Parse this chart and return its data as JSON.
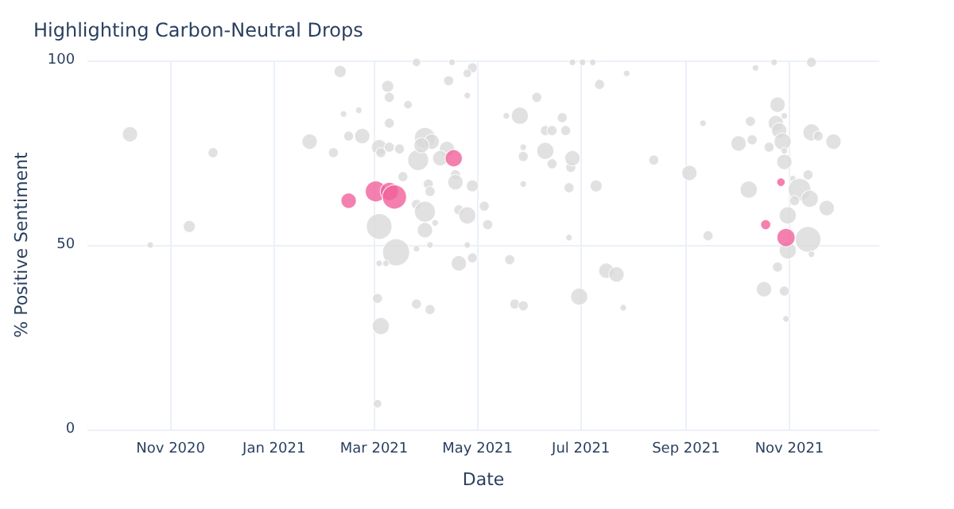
{
  "chart_data": {
    "type": "bubble",
    "title": "Highlighting Carbon-Neutral Drops",
    "xlabel": "Date",
    "ylabel": "% Positive Sentiment",
    "xlim": [
      "2020-09-13",
      "2021-12-24"
    ],
    "xticks": [
      {
        "value": "2020-11-01",
        "label": "Nov 2020"
      },
      {
        "value": "2021-01-01",
        "label": "Jan 2021"
      },
      {
        "value": "2021-03-01",
        "label": "Mar 2021"
      },
      {
        "value": "2021-05-01",
        "label": "May 2021"
      },
      {
        "value": "2021-07-01",
        "label": "Jul 2021"
      },
      {
        "value": "2021-09-01",
        "label": "Sep 2021"
      },
      {
        "value": "2021-11-01",
        "label": "Nov 2021"
      }
    ],
    "ylim": [
      0,
      100
    ],
    "yticks": [
      0,
      50,
      100
    ],
    "grid": true,
    "series": [
      {
        "color": "#d9d9d9",
        "x": [
          "2020-10-08",
          "2020-10-20",
          "2020-11-12",
          "2020-11-26",
          "2021-01-22",
          "2021-02-09",
          "2021-02-05",
          "2021-02-11",
          "2021-02-20",
          "2021-02-14",
          "2021-02-22",
          "2021-03-03",
          "2021-03-05",
          "2021-03-03",
          "2021-03-04",
          "2021-03-09",
          "2021-03-10",
          "2021-03-21",
          "2021-03-10",
          "2021-03-04",
          "2021-03-05",
          "2021-03-10",
          "2021-03-16",
          "2021-03-27",
          "2021-03-31",
          "2021-04-04",
          "2021-03-29",
          "2021-04-13",
          "2021-04-09",
          "2021-03-18",
          "2021-03-26",
          "2021-04-28",
          "2021-04-25",
          "2021-04-14",
          "2021-04-25",
          "2021-04-18",
          "2021-04-18",
          "2021-04-28",
          "2021-04-02",
          "2021-04-03",
          "2021-03-26",
          "2021-03-31",
          "2021-04-06",
          "2021-03-31",
          "2021-04-20",
          "2021-04-25",
          "2021-05-05",
          "2021-05-07",
          "2021-03-14",
          "2021-04-20",
          "2021-04-28",
          "2021-03-26",
          "2021-04-25",
          "2021-04-03",
          "2021-03-04",
          "2021-03-08",
          "2021-05-20",
          "2021-05-26",
          "2021-05-18",
          "2021-06-05",
          "2021-06-10",
          "2021-05-28",
          "2021-05-28",
          "2021-05-28",
          "2021-06-10",
          "2021-06-14",
          "2021-06-22",
          "2021-06-20",
          "2021-06-14",
          "2021-06-25",
          "2021-06-26",
          "2021-06-24",
          "2021-07-10",
          "2021-07-12",
          "2021-07-28",
          "2021-06-24",
          "2021-07-16",
          "2021-07-22",
          "2021-06-30",
          "2021-05-23",
          "2021-05-28",
          "2021-03-26",
          "2021-04-03",
          "2021-07-26",
          "2021-08-13",
          "2021-09-03",
          "2021-09-11",
          "2021-09-14",
          "2021-10-12",
          "2021-10-02",
          "2021-10-10",
          "2021-10-09",
          "2021-10-25",
          "2021-10-24",
          "2021-10-26",
          "2021-10-20",
          "2021-10-28",
          "2021-10-29",
          "2021-10-29",
          "2021-11-14",
          "2021-11-18",
          "2021-11-27",
          "2021-10-29",
          "2021-11-03",
          "2021-11-12",
          "2021-10-08",
          "2021-11-07",
          "2021-11-13",
          "2021-11-04",
          "2021-11-23",
          "2021-10-31",
          "2021-11-12",
          "2021-10-31",
          "2021-11-14",
          "2021-10-25",
          "2021-10-17",
          "2021-10-29",
          "2021-10-30",
          "2021-11-14",
          "2021-10-23",
          "2021-07-08",
          "2021-07-02",
          "2021-06-26",
          "2021-04-16"
        ],
        "values": [
          80,
          50,
          55,
          75,
          78,
          97,
          75,
          85.5,
          86.5,
          79.5,
          79.5,
          7,
          28,
          35.5,
          55,
          93,
          90,
          88,
          83,
          76.5,
          75,
          76.5,
          76,
          73,
          79,
          78,
          77,
          76,
          73.5,
          68.5,
          99.5,
          98,
          96.5,
          94.5,
          90.5,
          69,
          67,
          66,
          66.5,
          64.5,
          61,
          59,
          56,
          54,
          59.5,
          58,
          60.5,
          55.5,
          48,
          45,
          46.5,
          49,
          50,
          50,
          45,
          45,
          46,
          85,
          85,
          90,
          75.5,
          76.5,
          74,
          66.5,
          81,
          81,
          81,
          84.5,
          72,
          71,
          73.5,
          65.5,
          66,
          93.5,
          96.5,
          52,
          43,
          42,
          36,
          34,
          33.5,
          34,
          32.5,
          33,
          73,
          69.5,
          83,
          52.5,
          98,
          77.5,
          78.5,
          83.5,
          88,
          83,
          81,
          76.5,
          78,
          85,
          75.5,
          80.5,
          79.5,
          78,
          72.5,
          68,
          69,
          65,
          65,
          62.5,
          62,
          60,
          58,
          51.5,
          48.5,
          47.5,
          44,
          38,
          37.5,
          30,
          99.5,
          99.5,
          99.5,
          99.5,
          99.5,
          99.5
        ],
        "sizes": [
          0.32,
          0.06,
          0.2,
          0.14,
          0.32,
          0.2,
          0.14,
          0.06,
          0.06,
          0.14,
          0.32,
          0.1,
          0.4,
          0.14,
          0.9,
          0.2,
          0.14,
          0.1,
          0.14,
          0.32,
          0.14,
          0.14,
          0.14,
          0.6,
          0.6,
          0.32,
          0.32,
          0.32,
          0.32,
          0.14,
          0.1,
          0.14,
          0.1,
          0.14,
          0.06,
          0.14,
          0.32,
          0.2,
          0.14,
          0.14,
          0.14,
          0.6,
          0.06,
          0.32,
          0.14,
          0.4,
          0.14,
          0.14,
          1,
          0.32,
          0.14,
          0.06,
          0.06,
          0.06,
          0.06,
          0.06,
          0.14,
          0.4,
          0.06,
          0.14,
          0.4,
          0.06,
          0.14,
          0.06,
          0.14,
          0.14,
          0.14,
          0.14,
          0.14,
          0.14,
          0.32,
          0.14,
          0.2,
          0.14,
          0.06,
          0.06,
          0.32,
          0.32,
          0.4,
          0.14,
          0.14,
          0.14,
          0.14,
          0.06,
          0.14,
          0.32,
          0.06,
          0.14,
          0.06,
          0.32,
          0.14,
          0.14,
          0.32,
          0.32,
          0.32,
          0.14,
          0.4,
          0.06,
          0.06,
          0.4,
          0.14,
          0.32,
          0.32,
          0.06,
          0.14,
          0.4,
          0.7,
          0.4,
          0.14,
          0.32,
          0.4,
          0.9,
          0.4,
          0.06,
          0.14,
          0.32,
          0.14,
          0.06,
          0.14,
          0.06,
          0.06,
          0.06,
          0.06,
          0.06
        ]
      },
      {
        "color": "#f0609a",
        "x": [
          "2021-02-14",
          "2021-03-02",
          "2021-03-10",
          "2021-03-13",
          "2021-04-17",
          "2021-10-27",
          "2021-10-18",
          "2021-10-30"
        ],
        "values": [
          62,
          64.5,
          64.5,
          63,
          73.5,
          67,
          55.5,
          52
        ],
        "sizes": [
          0.32,
          0.6,
          0.45,
          0.8,
          0.4,
          0.1,
          0.14,
          0.45
        ]
      }
    ]
  }
}
